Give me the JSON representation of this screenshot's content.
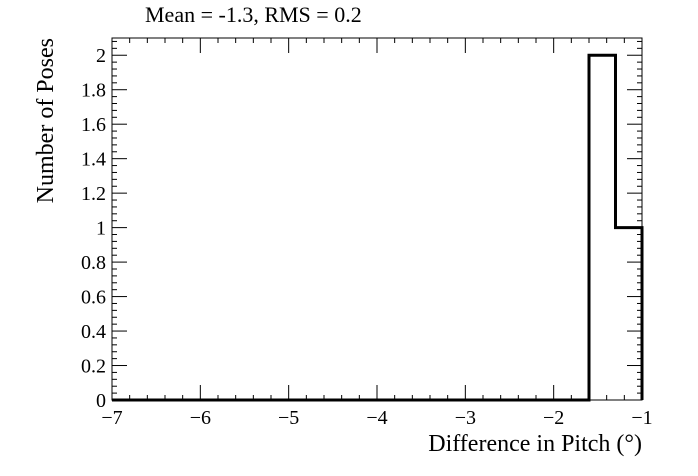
{
  "chart_data": {
    "type": "histogram",
    "title": "Mean = -1.3, RMS = 0.2",
    "xlabel": "Difference in Pitch (°)",
    "ylabel": "Number of Poses",
    "xlim": [
      -7,
      -1
    ],
    "ylim": [
      0,
      2.1
    ],
    "x_ticks": [
      -7,
      -6,
      -5,
      -4,
      -3,
      -2,
      -1
    ],
    "x_tick_labels": [
      "−7",
      "−6",
      "−5",
      "−4",
      "−3",
      "−2",
      "−1"
    ],
    "y_ticks": [
      0,
      0.2,
      0.4,
      0.6,
      0.8,
      1,
      1.2,
      1.4,
      1.6,
      1.8,
      2
    ],
    "y_tick_labels": [
      "0",
      "0.2",
      "0.4",
      "0.6",
      "0.8",
      "1",
      "1.2",
      "1.4",
      "1.6",
      "1.8",
      "2"
    ],
    "bins": [
      {
        "x0": -7.0,
        "x1": -1.6,
        "count": 0
      },
      {
        "x0": -1.6,
        "x1": -1.3,
        "count": 2
      },
      {
        "x0": -1.3,
        "x1": -1.0,
        "count": 1
      }
    ],
    "line_color": "#000000",
    "grid": false,
    "legend": false
  }
}
